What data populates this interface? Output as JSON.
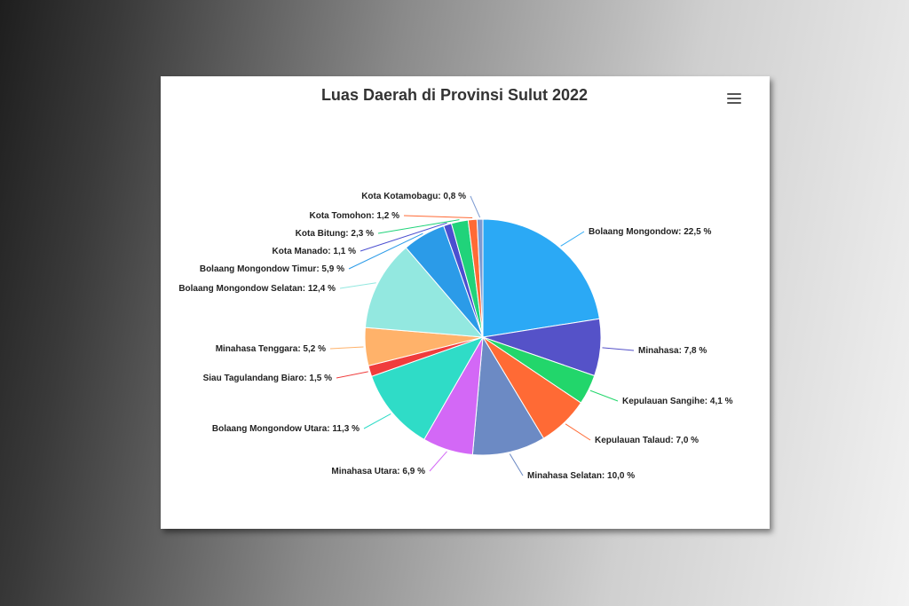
{
  "chart_data": {
    "type": "pie",
    "title": "Luas Daerah di Provinsi Sulut 2022",
    "slices": [
      {
        "label": "Bolaang Mongondow",
        "value": 22.5,
        "text": "Bolaang Mongondow: 22,5 %",
        "color": "#2ba9f5"
      },
      {
        "label": "Minahasa",
        "value": 7.8,
        "text": "Minahasa: 7,8 %",
        "color": "#5552c8"
      },
      {
        "label": "Kepulauan Sangihe",
        "value": 4.1,
        "text": "Kepulauan Sangihe: 4,1 %",
        "color": "#22d66b"
      },
      {
        "label": "Kepulauan Talaud",
        "value": 7.0,
        "text": "Kepulauan Talaud: 7,0 %",
        "color": "#ff6a35"
      },
      {
        "label": "Minahasa Selatan",
        "value": 10.0,
        "text": "Minahasa Selatan: 10,0 %",
        "color": "#6c8ac4"
      },
      {
        "label": "Minahasa Utara",
        "value": 6.9,
        "text": "Minahasa Utara: 6,9 %",
        "color": "#d368f6"
      },
      {
        "label": "Bolaang Mongondow Utara",
        "value": 11.3,
        "text": "Bolaang Mongondow Utara: 11,3 %",
        "color": "#2fdcc7"
      },
      {
        "label": "Siau Tagulandang Biaro",
        "value": 1.5,
        "text": "Siau Tagulandang Biaro: 1,5 %",
        "color": "#f03c3c"
      },
      {
        "label": "Minahasa Tenggara",
        "value": 5.2,
        "text": "Minahasa Tenggara: 5,2 %",
        "color": "#ffb26a"
      },
      {
        "label": "Bolaang Mongondow Selatan",
        "value": 12.4,
        "text": "Bolaang Mongondow Selatan: 12,4 %",
        "color": "#93e8e0"
      },
      {
        "label": "Bolaang Mongondow Timur",
        "value": 5.9,
        "text": "Bolaang Mongondow Timur: 5,9 %",
        "color": "#2b9be8"
      },
      {
        "label": "Kota Manado",
        "value": 1.1,
        "text": "Kota Manado: 1,1 %",
        "color": "#4b4fd0"
      },
      {
        "label": "Kota Bitung",
        "value": 2.3,
        "text": "Kota Bitung: 2,3 %",
        "color": "#20d37a"
      },
      {
        "label": "Kota Tomohon",
        "value": 1.2,
        "text": "Kota Tomohon: 1,2 %",
        "color": "#ff6a35"
      },
      {
        "label": "Kota Kotamobagu",
        "value": 0.8,
        "text": "Kota Kotamobagu: 0,8 %",
        "color": "#7c9ad2"
      }
    ]
  },
  "menu": {
    "icon": "hamburger-menu-icon"
  }
}
